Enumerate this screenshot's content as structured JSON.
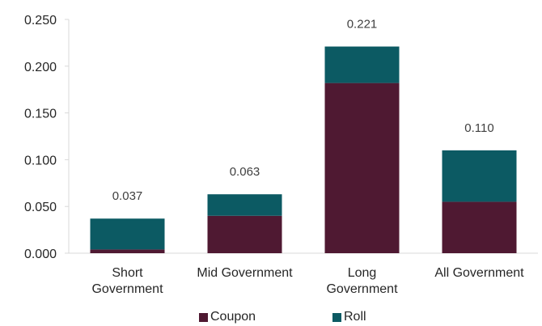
{
  "chart_data": {
    "type": "bar",
    "stacked": true,
    "categories": [
      [
        "Short",
        "Government"
      ],
      [
        "Mid Government"
      ],
      [
        "Long",
        "Government"
      ],
      [
        "All Government"
      ]
    ],
    "series": [
      {
        "name": "Coupon",
        "color": "#4f1932",
        "values": [
          0.004,
          0.04,
          0.182,
          0.055
        ]
      },
      {
        "name": "Roll",
        "color": "#0c5a63",
        "values": [
          0.033,
          0.023,
          0.039,
          0.055
        ]
      }
    ],
    "totals": [
      "0.037",
      "0.063",
      "0.221",
      "0.110"
    ],
    "y_ticks": [
      "0.000",
      "0.050",
      "0.100",
      "0.150",
      "0.200",
      "0.250"
    ],
    "ylim": [
      0,
      0.25
    ],
    "grid": false,
    "legend_position": "bottom"
  }
}
